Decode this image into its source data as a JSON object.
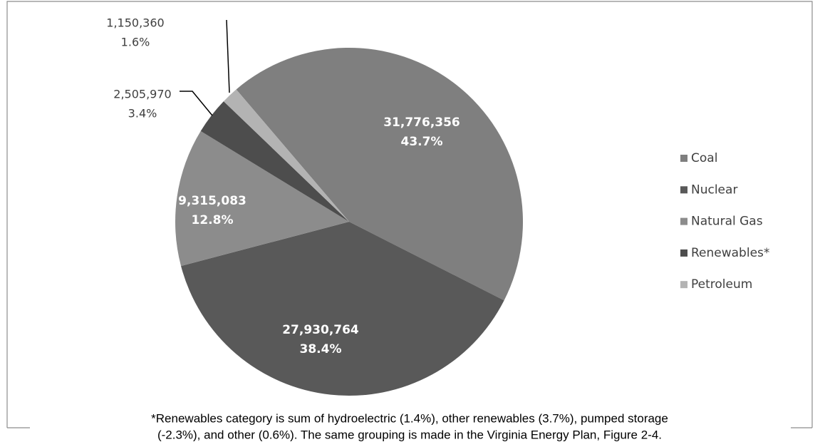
{
  "chart_data": {
    "type": "pie",
    "categories": [
      "Coal",
      "Nuclear",
      "Natural Gas",
      "Renewables*",
      "Petroleum"
    ],
    "values": [
      31776356,
      27930764,
      9315083,
      2505970,
      1150360
    ],
    "value_labels": [
      "31,776,356",
      "27,930,764",
      "9,315,083",
      "2,505,970",
      "1,150,360"
    ],
    "percents": [
      43.7,
      38.4,
      12.8,
      3.4,
      1.6
    ],
    "percent_labels": [
      "43.7%",
      "38.4%",
      "12.8%",
      "3.4%",
      "1.6%"
    ],
    "colors": [
      "#7f7f7f",
      "#595959",
      "#8c8c8c",
      "#4d4d4d",
      "#b3b3b3"
    ],
    "legend": "right",
    "footnote": [
      "*Renewables category is sum of hydroelectric (1.4%), other renewables (3.7%), pumped storage",
      "(-2.3%), and other (0.6%). The same grouping is made in the Virginia Energy Plan, Figure 2-4."
    ]
  }
}
